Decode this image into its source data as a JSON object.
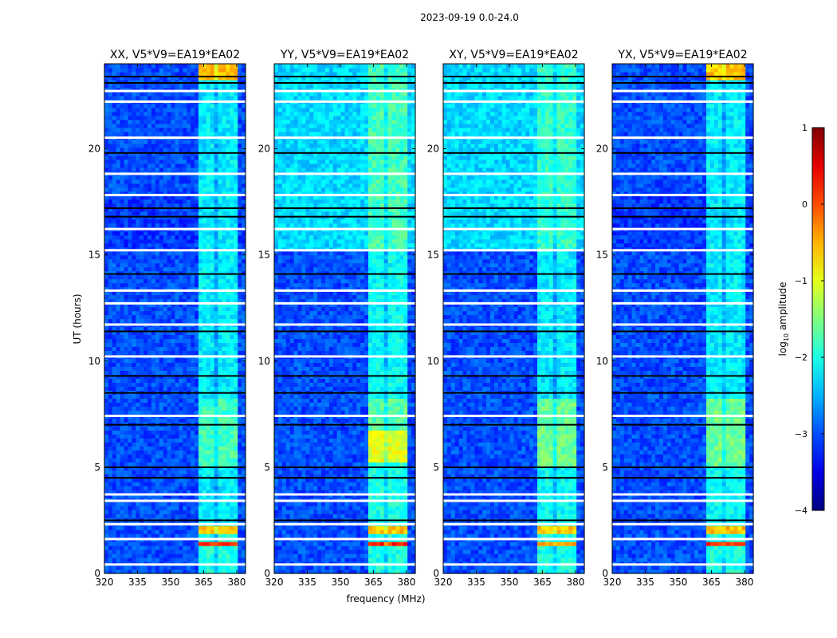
{
  "chart_data": {
    "type": "heatmap",
    "title": "2023-09-19 0.0-24.0",
    "xlabel": "frequency (MHz)",
    "ylabel": "UT (hours)",
    "xlim": [
      320,
      384
    ],
    "ylim": [
      0,
      24
    ],
    "xticks": [
      "320",
      "335",
      "350",
      "365",
      "380"
    ],
    "yticks": [
      "0",
      "5",
      "10",
      "15",
      "20"
    ],
    "colorbar": {
      "label": "log10 amplitude",
      "label_main": "log",
      "label_sub": "10",
      "label_rest": " amplitude",
      "range": [
        -4,
        1
      ],
      "ticks": [
        "1",
        "0",
        "−1",
        "−2",
        "−3",
        "−4"
      ],
      "colormap": "jet"
    },
    "rfi_band_mhz": [
      362,
      381
    ],
    "rfi_subchannels_mhz": [
      [
        362,
        366
      ],
      [
        366.5,
        370.5
      ],
      [
        371,
        375
      ],
      [
        375.5,
        380
      ]
    ],
    "panels": [
      {
        "title": "XX, V5*V9=EA19*EA02",
        "background": [
          [
            0,
            15.2,
            -3.0
          ],
          [
            15.2,
            17.8,
            -3.1
          ],
          [
            17.8,
            24,
            -3.0
          ]
        ],
        "rfi_level": [
          [
            0,
            1.3,
            -2.0
          ],
          [
            1.3,
            1.5,
            0.2
          ],
          [
            1.5,
            1.9,
            -2.0
          ],
          [
            1.9,
            2.2,
            -0.6
          ],
          [
            2.2,
            5.0,
            -2.2
          ],
          [
            5.0,
            8.2,
            -1.8
          ],
          [
            8.2,
            23.3,
            -2.2
          ],
          [
            23.3,
            24,
            -0.6
          ]
        ],
        "flagged_hours": [
          0.4,
          1.6,
          2.3,
          3.4,
          3.7,
          7.4,
          10.2,
          11.7,
          12.7,
          13.3,
          15.2,
          16.2,
          17.8,
          18.8,
          20.5,
          22.2,
          22.7
        ],
        "zero_hours": [
          2.5,
          4.5,
          5.0,
          7.0,
          8.5,
          9.3,
          11.4,
          14.1,
          16.8,
          17.2,
          19.8,
          23.1,
          23.4
        ]
      },
      {
        "title": "YY, V5*V9=EA19*EA02",
        "background": [
          [
            0,
            15.2,
            -3.0
          ],
          [
            15.2,
            24,
            -2.3
          ]
        ],
        "rfi_level": [
          [
            0,
            1.3,
            -2.0
          ],
          [
            1.3,
            1.5,
            0.2
          ],
          [
            1.5,
            1.9,
            -2.0
          ],
          [
            1.9,
            2.2,
            -0.6
          ],
          [
            2.2,
            5.2,
            -2.0
          ],
          [
            5.2,
            6.8,
            -1.0
          ],
          [
            6.8,
            8.2,
            -1.7
          ],
          [
            8.2,
            15.2,
            -2.1
          ],
          [
            15.2,
            24,
            -1.8
          ]
        ],
        "flagged_hours": [
          0.4,
          1.6,
          2.3,
          3.4,
          3.7,
          7.4,
          10.2,
          11.7,
          12.7,
          13.3,
          15.2,
          16.2,
          17.8,
          18.8,
          20.5,
          22.2,
          22.7
        ],
        "zero_hours": [
          2.5,
          4.5,
          5.0,
          7.0,
          8.5,
          9.3,
          11.4,
          14.1,
          16.8,
          17.2,
          19.8,
          23.1,
          23.4
        ]
      },
      {
        "title": "XY, V5*V9=EA19*EA02",
        "background": [
          [
            0,
            15.2,
            -3.0
          ],
          [
            15.2,
            24,
            -2.3
          ]
        ],
        "rfi_level": [
          [
            0,
            1.3,
            -2.0
          ],
          [
            1.3,
            1.5,
            -0.5
          ],
          [
            1.5,
            1.9,
            -2.0
          ],
          [
            1.9,
            2.2,
            -0.6
          ],
          [
            2.2,
            5.0,
            -2.1
          ],
          [
            5.0,
            8.2,
            -1.6
          ],
          [
            8.2,
            15.2,
            -2.2
          ],
          [
            15.2,
            24,
            -1.9
          ]
        ],
        "flagged_hours": [
          0.4,
          1.6,
          2.3,
          3.4,
          3.7,
          7.4,
          10.2,
          11.7,
          12.7,
          13.3,
          15.2,
          16.2,
          17.8,
          18.8,
          20.5,
          22.2,
          22.7
        ],
        "zero_hours": [
          2.5,
          4.5,
          5.0,
          7.0,
          8.5,
          9.3,
          11.4,
          14.1,
          16.8,
          17.2,
          19.8,
          23.1,
          23.4
        ]
      },
      {
        "title": "YX, V5*V9=EA19*EA02",
        "background": [
          [
            0,
            15.2,
            -3.0
          ],
          [
            15.2,
            17.8,
            -3.1
          ],
          [
            17.8,
            24,
            -3.0
          ]
        ],
        "rfi_level": [
          [
            0,
            1.3,
            -2.0
          ],
          [
            1.3,
            1.5,
            0.2
          ],
          [
            1.5,
            1.9,
            -2.0
          ],
          [
            1.9,
            2.2,
            -0.6
          ],
          [
            2.2,
            5.0,
            -2.1
          ],
          [
            5.0,
            8.2,
            -1.6
          ],
          [
            8.2,
            23.3,
            -2.2
          ],
          [
            23.3,
            24,
            -0.6
          ]
        ],
        "flagged_hours": [
          0.4,
          1.6,
          2.3,
          3.4,
          3.7,
          7.4,
          10.2,
          11.7,
          12.7,
          13.3,
          15.2,
          16.2,
          17.8,
          18.8,
          20.5,
          22.2,
          22.7
        ],
        "zero_hours": [
          2.5,
          4.5,
          5.0,
          7.0,
          8.5,
          9.3,
          11.4,
          14.1,
          16.8,
          17.2,
          19.8,
          23.1,
          23.4
        ]
      }
    ]
  }
}
